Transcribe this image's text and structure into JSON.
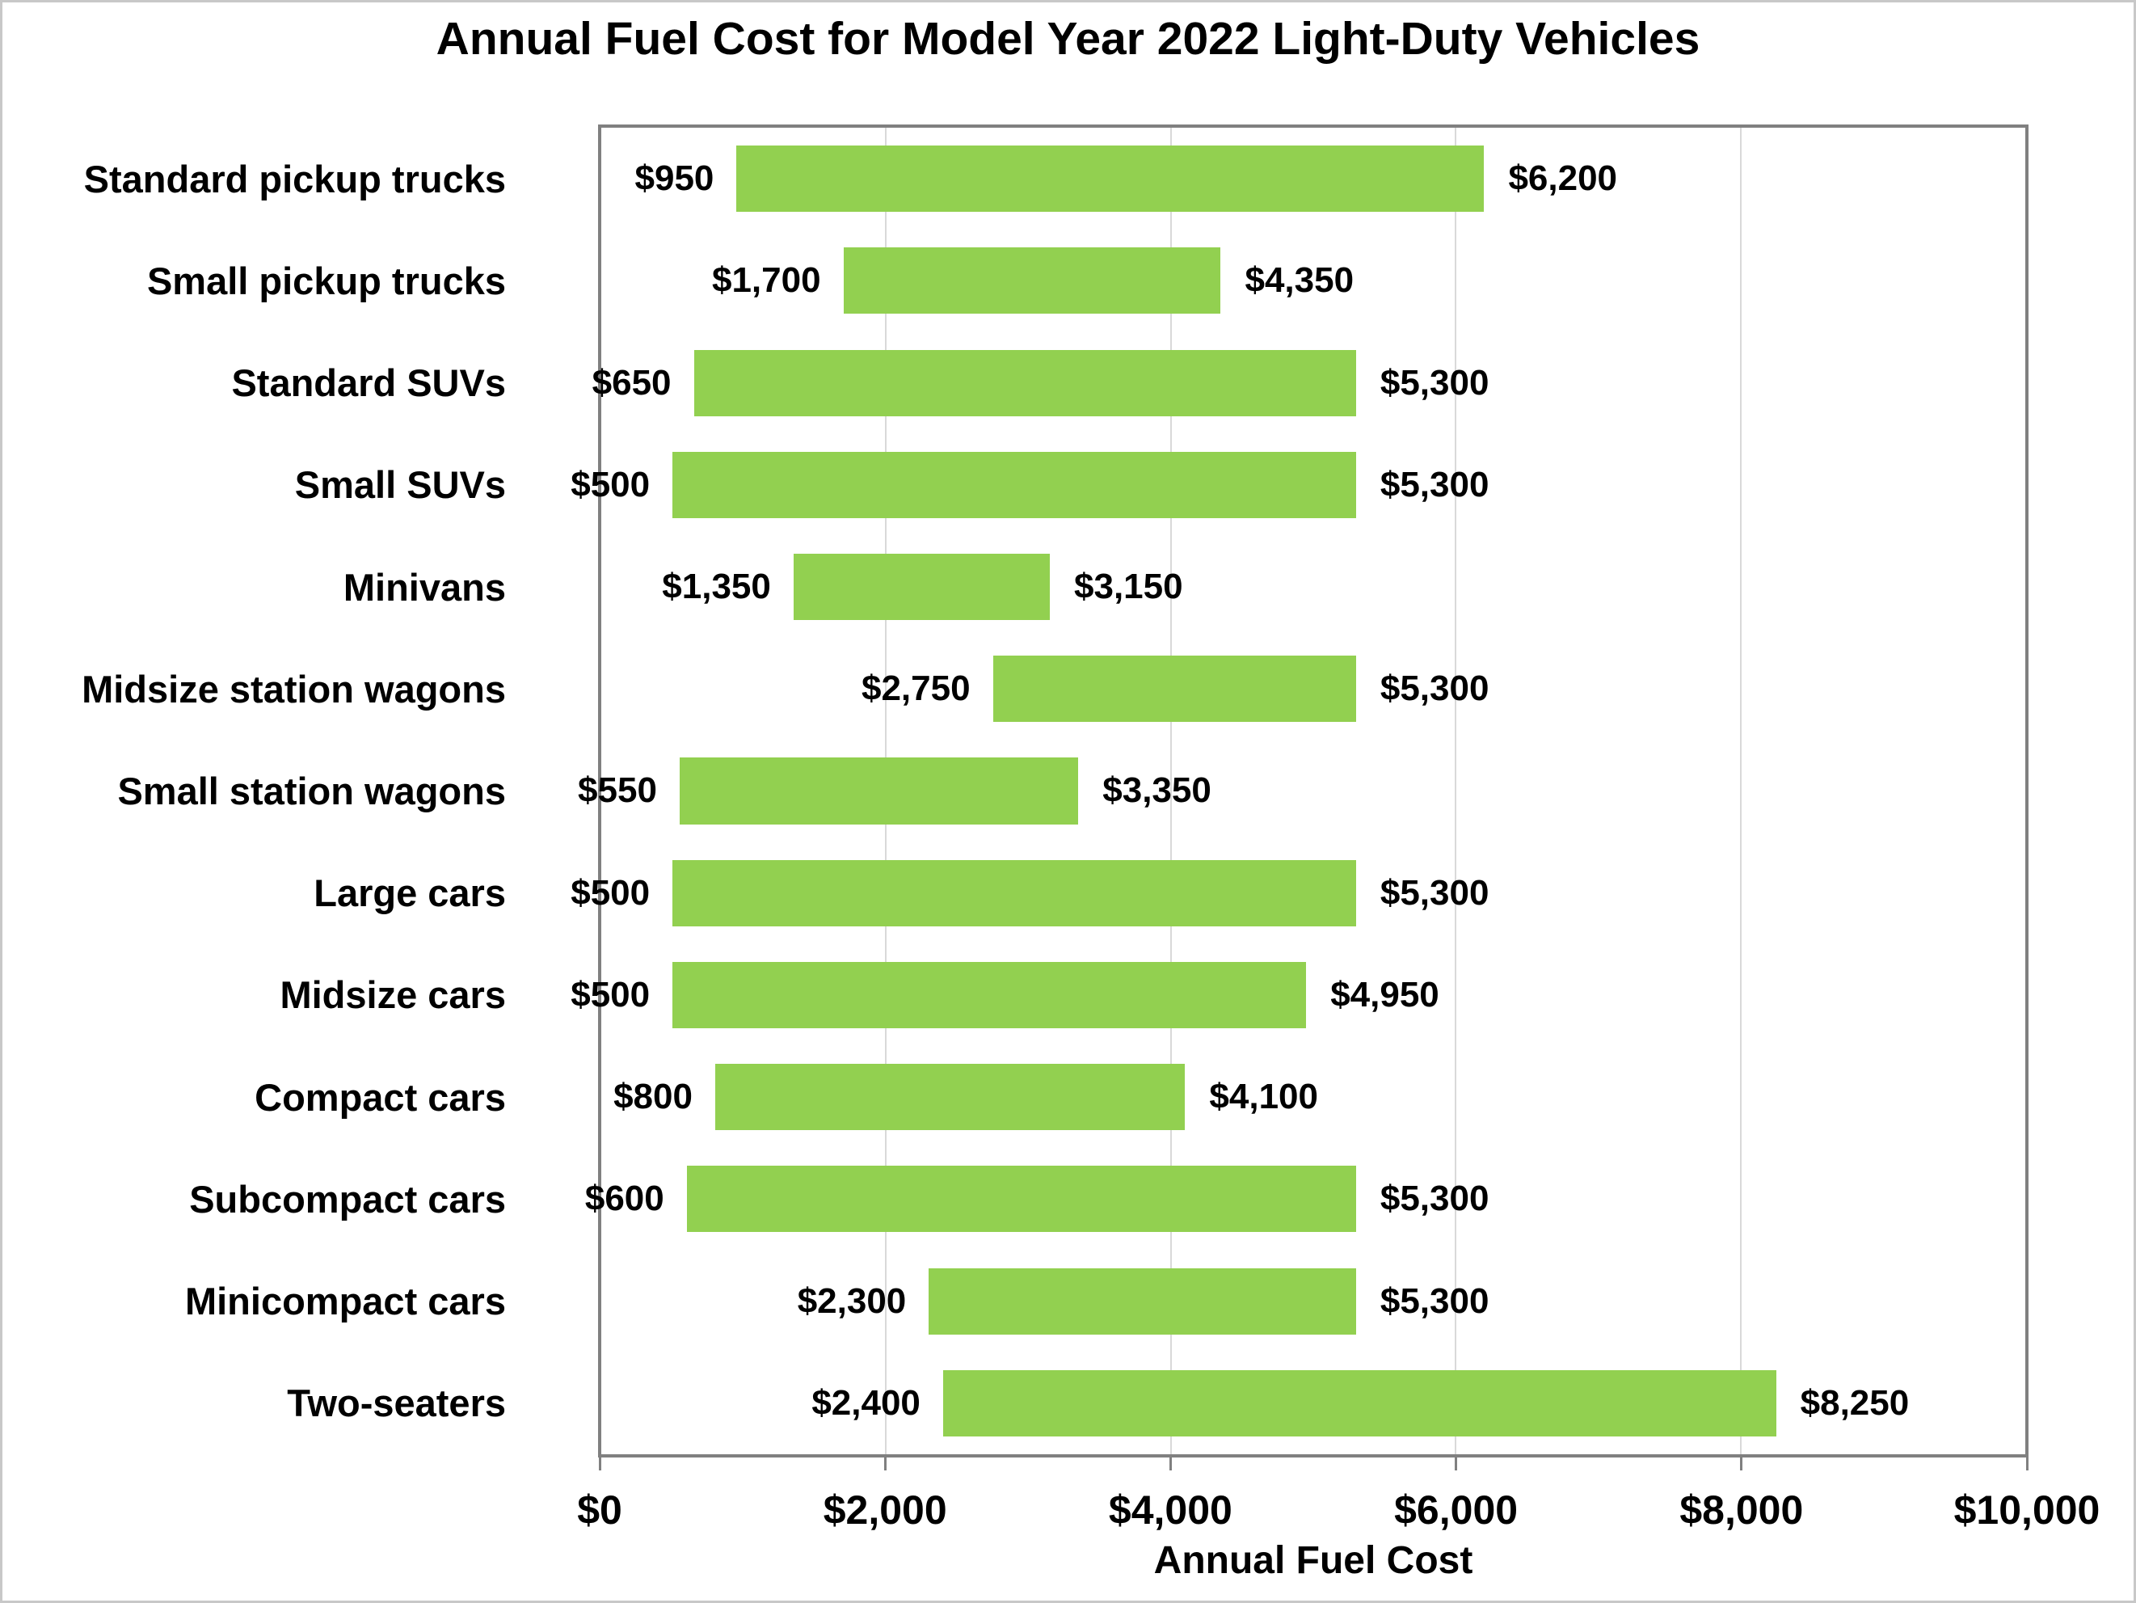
{
  "page": {
    "title": "Annual Fuel Cost for Model Year 2022 Light-Duty Vehicles"
  },
  "colors": {
    "bar": "#92D050",
    "gridline": "#D9D9D9",
    "axis": "#808080",
    "text": "#000000",
    "background": "#FFFFFF",
    "canvas_border": "#C8C8C8"
  },
  "chart_data": {
    "type": "bar",
    "subtype": "horizontal-range-bar",
    "title": "Annual Fuel Cost for Model Year 2022 Light-Duty Vehicles",
    "xlabel": "Annual Fuel Cost",
    "ylabel": "",
    "xlim": [
      0,
      10000
    ],
    "grid": "vertical gridlines at x ticks",
    "legend": "none",
    "bar_color": "#92D050",
    "x_ticks": [
      {
        "value": 0,
        "label": "$0"
      },
      {
        "value": 2000,
        "label": "$2,000"
      },
      {
        "value": 4000,
        "label": "$4,000"
      },
      {
        "value": 6000,
        "label": "$6,000"
      },
      {
        "value": 8000,
        "label": "$8,000"
      },
      {
        "value": 10000,
        "label": "$10,000"
      }
    ],
    "categories": [
      "Standard pickup trucks",
      "Small pickup trucks",
      "Standard SUVs",
      "Small SUVs",
      "Minivans",
      "Midsize station wagons",
      "Small station wagons",
      "Large cars",
      "Midsize cars",
      "Compact cars",
      "Subcompact cars",
      "Minicompact cars",
      "Two-seaters"
    ],
    "series": [
      {
        "name": "min annual fuel cost",
        "values": [
          950,
          1700,
          650,
          500,
          1350,
          2750,
          550,
          500,
          500,
          800,
          600,
          2300,
          2400
        ]
      },
      {
        "name": "max annual fuel cost",
        "values": [
          6200,
          4350,
          5300,
          5300,
          3150,
          5300,
          3350,
          5300,
          4950,
          4100,
          5300,
          5300,
          8250
        ]
      }
    ],
    "rows": [
      {
        "category": "Standard pickup trucks",
        "min": 950,
        "max": 6200,
        "min_label": "$950",
        "max_label": "$6,200"
      },
      {
        "category": "Small pickup trucks",
        "min": 1700,
        "max": 4350,
        "min_label": "$1,700",
        "max_label": "$4,350"
      },
      {
        "category": "Standard SUVs",
        "min": 650,
        "max": 5300,
        "min_label": "$650",
        "max_label": "$5,300"
      },
      {
        "category": "Small SUVs",
        "min": 500,
        "max": 5300,
        "min_label": "$500",
        "max_label": "$5,300"
      },
      {
        "category": "Minivans",
        "min": 1350,
        "max": 3150,
        "min_label": "$1,350",
        "max_label": "$3,150"
      },
      {
        "category": "Midsize station wagons",
        "min": 2750,
        "max": 5300,
        "min_label": "$2,750",
        "max_label": "$5,300"
      },
      {
        "category": "Small station wagons",
        "min": 550,
        "max": 3350,
        "min_label": "$550",
        "max_label": "$3,350"
      },
      {
        "category": "Large cars",
        "min": 500,
        "max": 5300,
        "min_label": "$500",
        "max_label": "$5,300"
      },
      {
        "category": "Midsize cars",
        "min": 500,
        "max": 4950,
        "min_label": "$500",
        "max_label": "$4,950"
      },
      {
        "category": "Compact cars",
        "min": 800,
        "max": 4100,
        "min_label": "$800",
        "max_label": "$4,100"
      },
      {
        "category": "Subcompact cars",
        "min": 600,
        "max": 5300,
        "min_label": "$600",
        "max_label": "$5,300"
      },
      {
        "category": "Minicompact cars",
        "min": 2300,
        "max": 5300,
        "min_label": "$2,300",
        "max_label": "$5,300"
      },
      {
        "category": "Two-seaters",
        "min": 2400,
        "max": 8250,
        "min_label": "$2,400",
        "max_label": "$8,250"
      }
    ]
  }
}
